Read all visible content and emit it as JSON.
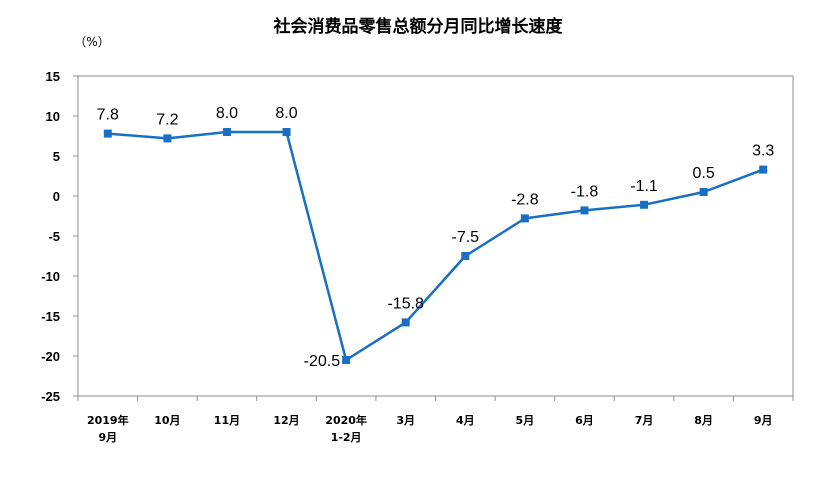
{
  "chart_data": {
    "type": "line",
    "title": "社会消费品零售总额分月同比增长速度",
    "ylabel": "（%）",
    "xlabel": "",
    "ylim": [
      -25,
      15
    ],
    "yticks": [
      15,
      10,
      5,
      0,
      -5,
      -10,
      -15,
      -20,
      -25
    ],
    "grid": false,
    "legend": "none",
    "categories": [
      [
        "2019年",
        "9月"
      ],
      [
        "10月"
      ],
      [
        "11月"
      ],
      [
        "12月"
      ],
      [
        "2020年",
        "1-2月"
      ],
      [
        "3月"
      ],
      [
        "4月"
      ],
      [
        "5月"
      ],
      [
        "6月"
      ],
      [
        "7月"
      ],
      [
        "8月"
      ],
      [
        "9月"
      ]
    ],
    "series": [
      {
        "values": [
          7.8,
          7.2,
          8.0,
          8.0,
          -20.5,
          -15.8,
          -7.5,
          -2.8,
          -1.8,
          -1.1,
          0.5,
          3.3
        ],
        "labels": [
          "7.8",
          "7.2",
          "8.0",
          "8.0",
          "-20.5",
          "-15.8",
          "-7.5",
          "-2.8",
          "-1.8",
          "-1.1",
          "0.5",
          "3.3"
        ],
        "color": "#1a6fc4"
      }
    ]
  }
}
